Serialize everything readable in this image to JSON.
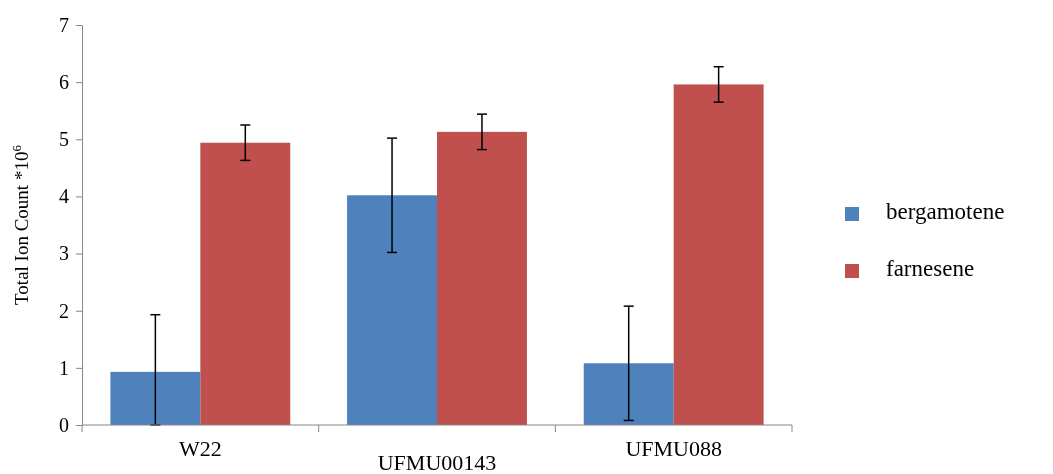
{
  "chart_data": {
    "type": "bar",
    "ylabel": "Total Ion Count *10$^{6}$",
    "categories": [
      "W22",
      "UFMU00143",
      "UFMU088"
    ],
    "series": [
      {
        "name": "bergamotene",
        "color": "#4f81bd",
        "values": [
          0.93,
          4.02,
          1.08
        ],
        "errors": [
          [
            0,
            1.93
          ],
          [
            3.02,
            5.02
          ],
          [
            0.08,
            2.08
          ]
        ]
      },
      {
        "name": "farnesene",
        "color": "#c0504d",
        "values": [
          4.94,
          5.13,
          5.96
        ],
        "errors": [
          [
            4.63,
            5.25
          ],
          [
            4.82,
            5.44
          ],
          [
            5.65,
            6.27
          ]
        ]
      }
    ],
    "ylim": [
      0,
      7
    ],
    "yticks": [
      0,
      1,
      2,
      3,
      4,
      5,
      6,
      7
    ],
    "grid": false,
    "legend": "right"
  }
}
